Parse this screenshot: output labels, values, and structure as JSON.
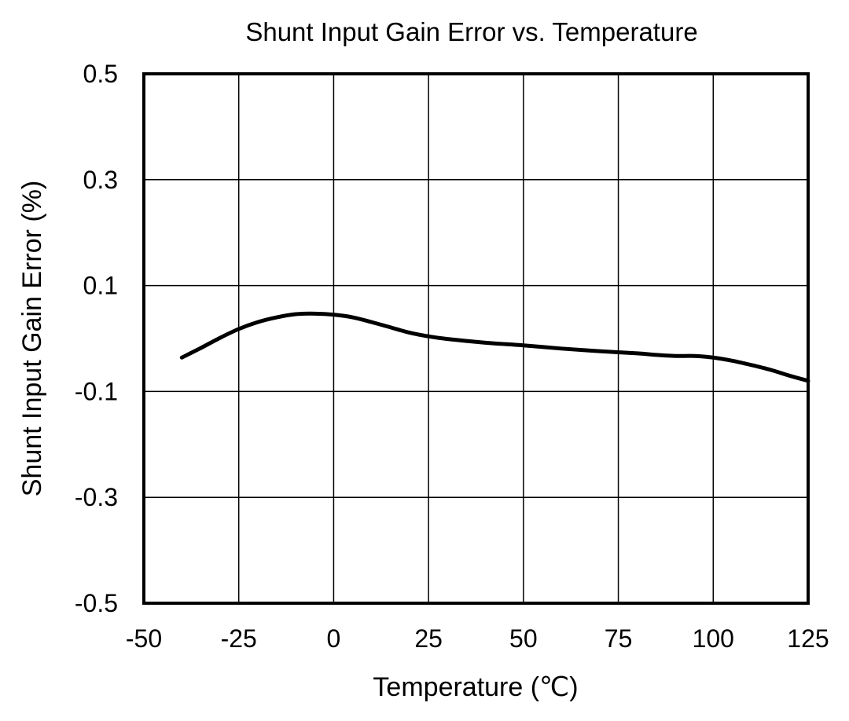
{
  "chart_data": {
    "type": "line",
    "title": "Shunt Input Gain Error vs. Temperature",
    "xlabel": "Temperature (℃)",
    "ylabel": "Shunt Input Gain Error (%)",
    "xlim": [
      -50,
      125
    ],
    "ylim": [
      -0.5,
      0.5
    ],
    "x_ticks": [
      -50,
      -25,
      0,
      25,
      50,
      75,
      100,
      125
    ],
    "x_tick_labels": [
      "-50",
      "-25",
      "0",
      "25",
      "50",
      "75",
      "100",
      "125"
    ],
    "y_ticks": [
      -0.5,
      -0.3,
      -0.1,
      0.1,
      0.3,
      0.5
    ],
    "y_tick_labels": [
      "-0.5",
      "-0.3",
      "-0.1",
      "0.1",
      "0.3",
      "0.5"
    ],
    "grid": true,
    "legend": "none",
    "series": [
      {
        "x": [
          -40,
          -35,
          -30,
          -25,
          -20,
          -15,
          -10,
          -5,
          0,
          5,
          10,
          15,
          20,
          25,
          30,
          40,
          50,
          60,
          70,
          80,
          85,
          90,
          95,
          100,
          105,
          110,
          115,
          120,
          125
        ],
        "values": [
          -0.036,
          -0.018,
          0.001,
          0.018,
          0.031,
          0.04,
          0.046,
          0.047,
          0.045,
          0.04,
          0.031,
          0.021,
          0.011,
          0.004,
          -0.001,
          -0.008,
          -0.013,
          -0.019,
          -0.024,
          -0.028,
          -0.031,
          -0.033,
          -0.033,
          -0.036,
          -0.042,
          -0.05,
          -0.059,
          -0.07,
          -0.08
        ],
        "color": "#000000"
      }
    ]
  }
}
